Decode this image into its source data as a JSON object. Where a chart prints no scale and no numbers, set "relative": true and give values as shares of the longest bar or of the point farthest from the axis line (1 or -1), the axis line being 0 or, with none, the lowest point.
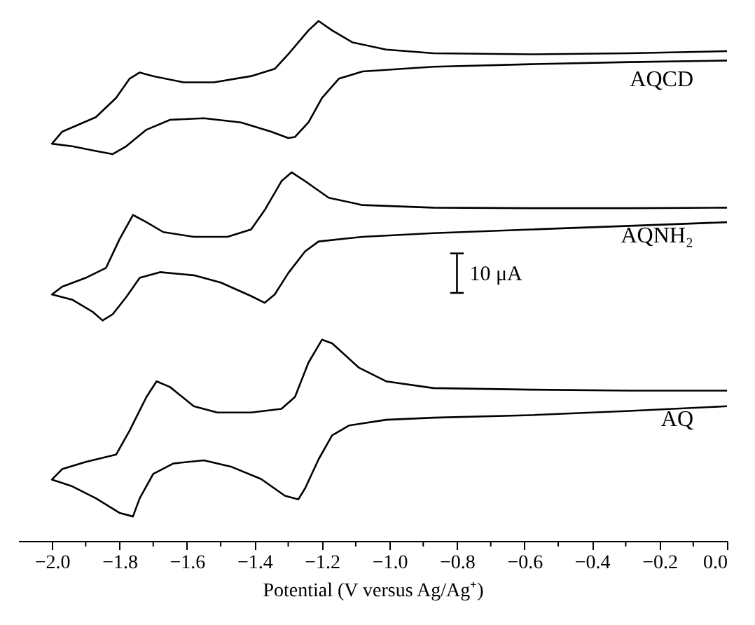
{
  "chart_data": {
    "type": "line",
    "relative": true,
    "xlabel": "Potential (V versus Ag/Ag⁺)",
    "xlim": [
      -2.1,
      0.0
    ],
    "xticks": [
      {
        "value": -2.0,
        "label": "−2.0"
      },
      {
        "value": -1.9,
        "label": null
      },
      {
        "value": -1.8,
        "label": "−1.8"
      },
      {
        "value": -1.7,
        "label": null
      },
      {
        "value": -1.6,
        "label": "−1.6"
      },
      {
        "value": -1.5,
        "label": null
      },
      {
        "value": -1.4,
        "label": "−1.4"
      },
      {
        "value": -1.3,
        "label": null
      },
      {
        "value": -1.2,
        "label": "−1.2"
      },
      {
        "value": -1.1,
        "label": null
      },
      {
        "value": -1.0,
        "label": "−1.0"
      },
      {
        "value": -0.9,
        "label": null
      },
      {
        "value": -0.8,
        "label": "−0.8"
      },
      {
        "value": -0.7,
        "label": null
      },
      {
        "value": -0.6,
        "label": "−0.6"
      },
      {
        "value": -0.5,
        "label": null
      },
      {
        "value": -0.4,
        "label": "−0.4"
      },
      {
        "value": -0.3,
        "label": null
      },
      {
        "value": -0.2,
        "label": "−0.2"
      },
      {
        "value": -0.1,
        "label": null
      },
      {
        "value": 0.0,
        "label": "0.0"
      }
    ],
    "grid": false,
    "legend": false,
    "marker": "none",
    "line_style": "solid",
    "annotations": [
      "10 μA"
    ],
    "series": [
      {
        "name": "AQCD",
        "color": "#000000",
        "x": [
          0.0,
          -0.29,
          -0.58,
          -0.87,
          -1.08,
          -1.15,
          -1.2,
          -1.24,
          -1.28,
          -1.3,
          -1.35,
          -1.44,
          -1.55,
          -1.65,
          -1.72,
          -1.78,
          -1.82,
          -1.87,
          -1.94,
          -2.0,
          -1.97,
          -1.87,
          -1.81,
          -1.77,
          -1.74,
          -1.7,
          -1.61,
          -1.52,
          -1.41,
          -1.34,
          -1.3,
          -1.24,
          -1.21,
          -1.17,
          -1.11,
          -1.01,
          -0.87,
          -0.58,
          -0.29,
          0.0
        ],
        "values": [
          0.924,
          0.921,
          0.917,
          0.912,
          0.903,
          0.889,
          0.852,
          0.805,
          0.777,
          0.775,
          0.787,
          0.805,
          0.813,
          0.81,
          0.791,
          0.759,
          0.744,
          0.75,
          0.759,
          0.764,
          0.787,
          0.815,
          0.852,
          0.889,
          0.901,
          0.894,
          0.882,
          0.882,
          0.894,
          0.908,
          0.936,
          0.982,
          1.0,
          0.982,
          0.959,
          0.945,
          0.938,
          0.936,
          0.938,
          0.942
        ]
      },
      {
        "name": "AQNH₂",
        "color": "#000000",
        "x": [
          0.0,
          -0.29,
          -0.58,
          -0.87,
          -1.08,
          -1.21,
          -1.25,
          -1.3,
          -1.34,
          -1.37,
          -1.41,
          -1.5,
          -1.58,
          -1.68,
          -1.74,
          -1.78,
          -1.82,
          -1.85,
          -1.88,
          -1.94,
          -2.0,
          -1.97,
          -1.9,
          -1.84,
          -1.8,
          -1.76,
          -1.72,
          -1.67,
          -1.58,
          -1.48,
          -1.41,
          -1.37,
          -1.32,
          -1.29,
          -1.25,
          -1.18,
          -1.08,
          -0.87,
          -0.58,
          -0.29,
          0.0
        ],
        "values": [
          0.613,
          0.606,
          0.599,
          0.592,
          0.585,
          0.576,
          0.557,
          0.515,
          0.474,
          0.458,
          0.471,
          0.497,
          0.511,
          0.517,
          0.506,
          0.469,
          0.436,
          0.424,
          0.441,
          0.464,
          0.474,
          0.489,
          0.506,
          0.525,
          0.58,
          0.627,
          0.613,
          0.594,
          0.585,
          0.585,
          0.599,
          0.636,
          0.692,
          0.709,
          0.692,
          0.66,
          0.646,
          0.641,
          0.64,
          0.64,
          0.641
        ]
      },
      {
        "name": "AQ",
        "color": "#000000",
        "x": [
          0.0,
          -0.29,
          -0.58,
          -0.87,
          -1.01,
          -1.12,
          -1.17,
          -1.21,
          -1.25,
          -1.27,
          -1.31,
          -1.38,
          -1.47,
          -1.55,
          -1.64,
          -1.7,
          -1.74,
          -1.76,
          -1.8,
          -1.87,
          -1.94,
          -2.0,
          -1.97,
          -1.9,
          -1.81,
          -1.77,
          -1.72,
          -1.69,
          -1.65,
          -1.58,
          -1.51,
          -1.41,
          -1.32,
          -1.28,
          -1.24,
          -1.2,
          -1.17,
          -1.09,
          -1.01,
          -0.87,
          -0.58,
          -0.29,
          0.0
        ],
        "values": [
          0.259,
          0.25,
          0.242,
          0.237,
          0.233,
          0.222,
          0.203,
          0.157,
          0.101,
          0.08,
          0.087,
          0.119,
          0.143,
          0.155,
          0.149,
          0.129,
          0.082,
          0.047,
          0.054,
          0.082,
          0.105,
          0.118,
          0.138,
          0.152,
          0.166,
          0.212,
          0.277,
          0.307,
          0.296,
          0.259,
          0.247,
          0.247,
          0.254,
          0.277,
          0.343,
          0.387,
          0.38,
          0.333,
          0.307,
          0.294,
          0.291,
          0.289,
          0.289
        ]
      }
    ]
  }
}
